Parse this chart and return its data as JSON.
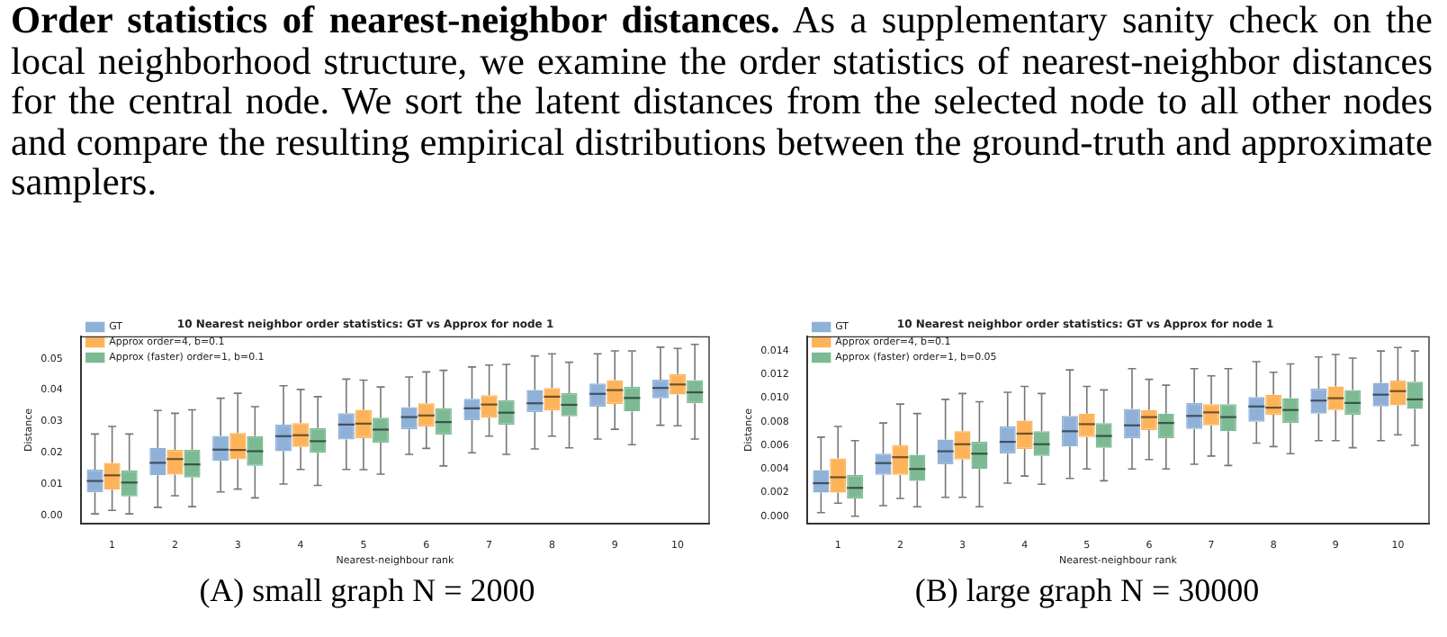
{
  "chart_data": [
    {
      "type": "box",
      "title": "10 Nearest neighbor order statistics: GT vs Approx for node 1",
      "xlabel": "Nearest-neighbour rank",
      "ylabel": "Distance",
      "annotations": [
        "Order statistics of nearest-neighbor distances.",
        "As a supplementary sanity check on the local neighborhood structure, we examine the order statistics of nearest-neighbor distances for the central node. We sort the latent distances from the selected node to all other nodes and compare the resulting empirical distributions between the ground-truth and approximate samplers.",
        "(A) small graph N = 2000"
      ],
      "categories": [
        "1",
        "2",
        "3",
        "4",
        "5",
        "6",
        "7",
        "8",
        "9",
        "10"
      ],
      "ylim": [
        -0.0025,
        0.057
      ],
      "yticks": [
        {
          "value": 0,
          "label": "0.00"
        },
        {
          "value": 0.01,
          "label": "0.01"
        },
        {
          "value": 0.02,
          "label": "0.02"
        },
        {
          "value": 0.03,
          "label": "0.03"
        },
        {
          "value": 0.04,
          "label": "0.04"
        },
        {
          "value": 0.05,
          "label": "0.05"
        }
      ],
      "legend": "top left",
      "grid": false,
      "series": [
        {
          "name": "GT",
          "color": "#8fb1d8",
          "boxes": [
            {
              "low": 0.0005,
              "q1": 0.0074,
              "median": 0.011,
              "q3": 0.0146,
              "high": 0.026
            },
            {
              "low": 0.0026,
              "q1": 0.0128,
              "median": 0.0168,
              "q3": 0.0216,
              "high": 0.0335
            },
            {
              "low": 0.0075,
              "q1": 0.0174,
              "median": 0.021,
              "q3": 0.0254,
              "high": 0.0374
            },
            {
              "low": 0.01,
              "q1": 0.0205,
              "median": 0.0253,
              "q3": 0.029,
              "high": 0.0414
            },
            {
              "low": 0.0147,
              "q1": 0.0242,
              "median": 0.029,
              "q3": 0.0326,
              "high": 0.0435
            },
            {
              "low": 0.0195,
              "q1": 0.0275,
              "median": 0.0314,
              "q3": 0.0346,
              "high": 0.0442
            },
            {
              "low": 0.02,
              "q1": 0.0304,
              "median": 0.0342,
              "q3": 0.0372,
              "high": 0.0474
            },
            {
              "low": 0.0212,
              "q1": 0.033,
              "median": 0.0358,
              "q3": 0.04,
              "high": 0.0509
            },
            {
              "low": 0.0244,
              "q1": 0.0347,
              "median": 0.0388,
              "q3": 0.0421,
              "high": 0.0516
            },
            {
              "low": 0.0288,
              "q1": 0.0374,
              "median": 0.0407,
              "q3": 0.0433,
              "high": 0.0537
            }
          ]
        },
        {
          "name": "Approx order=4, b=0.1",
          "color": "#fdb35a",
          "boxes": [
            {
              "low": 0.0016,
              "q1": 0.0082,
              "median": 0.0128,
              "q3": 0.0168,
              "high": 0.0284
            },
            {
              "low": 0.0063,
              "q1": 0.013,
              "median": 0.018,
              "q3": 0.0209,
              "high": 0.0326
            },
            {
              "low": 0.0084,
              "q1": 0.0179,
              "median": 0.0209,
              "q3": 0.0263,
              "high": 0.039
            },
            {
              "low": 0.0147,
              "q1": 0.0219,
              "median": 0.0256,
              "q3": 0.0295,
              "high": 0.0402
            },
            {
              "low": 0.0146,
              "q1": 0.0247,
              "median": 0.0293,
              "q3": 0.0337,
              "high": 0.0432
            },
            {
              "low": 0.0214,
              "q1": 0.0284,
              "median": 0.0319,
              "q3": 0.0358,
              "high": 0.0458
            },
            {
              "low": 0.0253,
              "q1": 0.0312,
              "median": 0.0354,
              "q3": 0.0384,
              "high": 0.048
            },
            {
              "low": 0.0253,
              "q1": 0.0335,
              "median": 0.0379,
              "q3": 0.0407,
              "high": 0.0516
            },
            {
              "low": 0.0275,
              "q1": 0.0356,
              "median": 0.04,
              "q3": 0.0432,
              "high": 0.0525
            },
            {
              "low": 0.0286,
              "q1": 0.0386,
              "median": 0.0418,
              "q3": 0.0451,
              "high": 0.0533
            }
          ]
        },
        {
          "name": "Approx (faster) order=1, b=0.1",
          "color": "#7dba94",
          "boxes": [
            {
              "low": 0.0005,
              "q1": 0.0061,
              "median": 0.0105,
              "q3": 0.0144,
              "high": 0.026
            },
            {
              "low": 0.0028,
              "q1": 0.0121,
              "median": 0.0163,
              "q3": 0.021,
              "high": 0.0337
            },
            {
              "low": 0.0056,
              "q1": 0.0158,
              "median": 0.0205,
              "q3": 0.0253,
              "high": 0.0347
            },
            {
              "low": 0.0096,
              "q1": 0.02,
              "median": 0.0237,
              "q3": 0.0279,
              "high": 0.0379
            },
            {
              "low": 0.0132,
              "q1": 0.0232,
              "median": 0.0274,
              "q3": 0.0312,
              "high": 0.041
            },
            {
              "low": 0.0158,
              "q1": 0.0258,
              "median": 0.0298,
              "q3": 0.0342,
              "high": 0.0463
            },
            {
              "low": 0.0195,
              "q1": 0.029,
              "median": 0.0328,
              "q3": 0.0368,
              "high": 0.0482
            },
            {
              "low": 0.0216,
              "q1": 0.0316,
              "median": 0.0353,
              "q3": 0.039,
              "high": 0.0489
            },
            {
              "low": 0.0226,
              "q1": 0.0332,
              "median": 0.0375,
              "q3": 0.041,
              "high": 0.0525
            },
            {
              "low": 0.0244,
              "q1": 0.0358,
              "median": 0.0393,
              "q3": 0.0432,
              "high": 0.0546
            }
          ]
        }
      ]
    },
    {
      "type": "box",
      "title": "10 Nearest neighbor order statistics: GT vs Approx for node 1",
      "xlabel": "Nearest-neighbour rank",
      "ylabel": "Distance",
      "annotations": [
        "(B) large graph N = 30000"
      ],
      "categories": [
        "1",
        "2",
        "3",
        "4",
        "5",
        "6",
        "7",
        "8",
        "9",
        "10"
      ],
      "ylim": [
        -0.0006,
        0.0152
      ],
      "yticks": [
        {
          "value": 0,
          "label": "0.000"
        },
        {
          "value": 0.002,
          "label": "0.002"
        },
        {
          "value": 0.004,
          "label": "0.004"
        },
        {
          "value": 0.006,
          "label": "0.006"
        },
        {
          "value": 0.008,
          "label": "0.008"
        },
        {
          "value": 0.01,
          "label": "0.010"
        },
        {
          "value": 0.012,
          "label": "0.012"
        },
        {
          "value": 0.014,
          "label": "0.014"
        }
      ],
      "legend": "top left",
      "grid": false,
      "series": [
        {
          "name": "GT",
          "color": "#8fb1d8",
          "boxes": [
            {
              "low": 0.0003,
              "q1": 0.002,
              "median": 0.0028,
              "q3": 0.0039,
              "high": 0.0067
            },
            {
              "low": 0.0009,
              "q1": 0.0035,
              "median": 0.0045,
              "q3": 0.0053,
              "high": 0.0079
            },
            {
              "low": 0.0016,
              "q1": 0.0044,
              "median": 0.0055,
              "q3": 0.0065,
              "high": 0.0099
            },
            {
              "low": 0.0028,
              "q1": 0.0053,
              "median": 0.0063,
              "q3": 0.0076,
              "high": 0.0105
            },
            {
              "low": 0.0032,
              "q1": 0.0059,
              "median": 0.0072,
              "q3": 0.0085,
              "high": 0.0124
            },
            {
              "low": 0.004,
              "q1": 0.0066,
              "median": 0.0077,
              "q3": 0.0091,
              "high": 0.0125
            },
            {
              "low": 0.0044,
              "q1": 0.0074,
              "median": 0.0085,
              "q3": 0.0096,
              "high": 0.0125
            },
            {
              "low": 0.0062,
              "q1": 0.008,
              "median": 0.0093,
              "q3": 0.0101,
              "high": 0.0131
            },
            {
              "low": 0.0064,
              "q1": 0.0087,
              "median": 0.0098,
              "q3": 0.0108,
              "high": 0.0135
            },
            {
              "low": 0.0064,
              "q1": 0.0093,
              "median": 0.0103,
              "q3": 0.0113,
              "high": 0.014
            }
          ]
        },
        {
          "name": "Approx order=4, b=0.1",
          "color": "#fdb35a",
          "boxes": [
            {
              "low": 0.0011,
              "q1": 0.002,
              "median": 0.0033,
              "q3": 0.0049,
              "high": 0.0076
            },
            {
              "low": 0.0015,
              "q1": 0.0035,
              "median": 0.005,
              "q3": 0.006,
              "high": 0.0095
            },
            {
              "low": 0.0016,
              "q1": 0.0048,
              "median": 0.0061,
              "q3": 0.0072,
              "high": 0.0104
            },
            {
              "low": 0.0034,
              "q1": 0.0057,
              "median": 0.007,
              "q3": 0.0081,
              "high": 0.011
            },
            {
              "low": 0.004,
              "q1": 0.0067,
              "median": 0.0078,
              "q3": 0.0087,
              "high": 0.011
            },
            {
              "low": 0.0048,
              "q1": 0.0073,
              "median": 0.0084,
              "q3": 0.009,
              "high": 0.0116
            },
            {
              "low": 0.0051,
              "q1": 0.0077,
              "median": 0.0088,
              "q3": 0.0095,
              "high": 0.0119
            },
            {
              "low": 0.0059,
              "q1": 0.0086,
              "median": 0.0092,
              "q3": 0.0103,
              "high": 0.0122
            },
            {
              "low": 0.0064,
              "q1": 0.009,
              "median": 0.01,
              "q3": 0.011,
              "high": 0.0137
            },
            {
              "low": 0.0069,
              "q1": 0.0094,
              "median": 0.0106,
              "q3": 0.0115,
              "high": 0.0143
            }
          ]
        },
        {
          "name": "Approx (faster) order=1, b=0.05",
          "color": "#7dba94",
          "boxes": [
            {
              "low": 0.0,
              "q1": 0.0015,
              "median": 0.0024,
              "q3": 0.0035,
              "high": 0.0064
            },
            {
              "low": 0.0008,
              "q1": 0.003,
              "median": 0.004,
              "q3": 0.0052,
              "high": 0.0087
            },
            {
              "low": 0.0008,
              "q1": 0.004,
              "median": 0.0053,
              "q3": 0.0063,
              "high": 0.0097
            },
            {
              "low": 0.0027,
              "q1": 0.0051,
              "median": 0.0061,
              "q3": 0.0072,
              "high": 0.0104
            },
            {
              "low": 0.003,
              "q1": 0.0058,
              "median": 0.0068,
              "q3": 0.0079,
              "high": 0.0107
            },
            {
              "low": 0.004,
              "q1": 0.0066,
              "median": 0.0079,
              "q3": 0.0087,
              "high": 0.0111
            },
            {
              "low": 0.0043,
              "q1": 0.0072,
              "median": 0.0084,
              "q3": 0.0095,
              "high": 0.0125
            },
            {
              "low": 0.0053,
              "q1": 0.0079,
              "median": 0.009,
              "q3": 0.01,
              "high": 0.0129
            },
            {
              "low": 0.0058,
              "q1": 0.0086,
              "median": 0.0096,
              "q3": 0.0107,
              "high": 0.0134
            },
            {
              "low": 0.006,
              "q1": 0.0091,
              "median": 0.0099,
              "q3": 0.0114,
              "high": 0.014
            }
          ]
        }
      ]
    }
  ]
}
